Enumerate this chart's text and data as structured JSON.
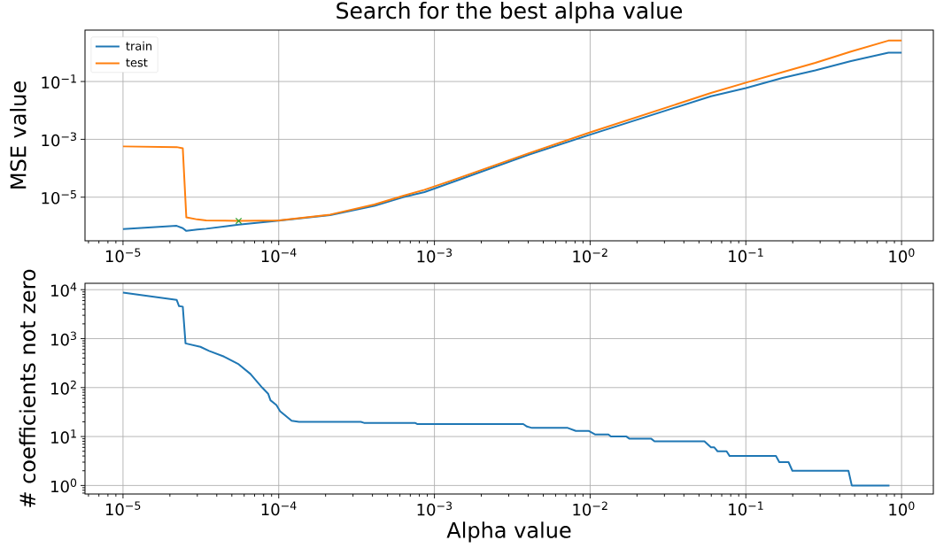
{
  "chart_data": [
    {
      "type": "line",
      "title": "Search for the best alpha value",
      "ylabel": "MSE value",
      "log": "xy",
      "grid": true,
      "legend": "top left",
      "xlim": [
        5.7e-06,
        1.6
      ],
      "ylim": [
        3.1e-07,
        6.0
      ],
      "xticks": [
        {
          "value": 1e-05,
          "label": "10$^{−5}$"
        },
        {
          "value": 0.0001,
          "label": "10$^{−4}$"
        },
        {
          "value": 0.001,
          "label": "10$^{−3}$"
        },
        {
          "value": 0.01,
          "label": "10$^{−2}$"
        },
        {
          "value": 0.1,
          "label": "10$^{−1}$"
        },
        {
          "value": 1,
          "label": "10$^{0}$"
        }
      ],
      "yticks": [
        {
          "value": 1e-05,
          "label": "10$^{−5}$"
        },
        {
          "value": 0.001,
          "label": "10$^{−3}$"
        },
        {
          "value": 0.1,
          "label": "10$^{−1}$"
        }
      ],
      "x": [
        1e-05,
        2.21e-05,
        2.42e-05,
        2.55e-05,
        3e-05,
        3.42e-05,
        5.53e-05,
        0.0001,
        0.000214,
        0.000411,
        0.000635,
        0.000863,
        0.00128,
        0.00403,
        0.01,
        0.0597,
        0.1,
        0.172,
        0.279,
        0.473,
        0.824,
        1.0
      ],
      "series": [
        {
          "name": "train",
          "color": "#1f77b4",
          "values": [
            7.9e-07,
            1.02e-06,
            8.5e-07,
            6.8e-07,
            7.6e-07,
            8.1e-07,
            1.12e-06,
            1.55e-06,
            2.4e-06,
            5e-06,
            1.01e-05,
            1.5e-05,
            3.2e-05,
            0.000295,
            0.00145,
            0.031,
            0.059,
            0.133,
            0.242,
            0.51,
            1.0,
            1.0
          ]
        },
        {
          "name": "test",
          "color": "#ff7f0e",
          "values": [
            0.00057,
            0.00054,
            0.00049,
            2e-06,
            1.7e-06,
            1.58e-06,
            1.51e-06,
            1.58e-06,
            2.5e-06,
            5.6e-06,
            1.13e-05,
            1.8e-05,
            3.7e-05,
            0.00033,
            0.00174,
            0.04,
            0.091,
            0.21,
            0.44,
            1.09,
            2.6,
            2.6
          ]
        },
        {
          "type": "scatter",
          "marker": "cross",
          "color": "#2ca02c",
          "x": [
            5.53e-05
          ],
          "values": [
            1.51e-06
          ]
        }
      ]
    },
    {
      "type": "line",
      "xlabel": "Alpha value",
      "ylabel": "# coefficients not zero",
      "log": "xy",
      "grid": true,
      "xlim": [
        5.7e-06,
        1.6
      ],
      "ylim": [
        0.67,
        13500
      ],
      "xticks": [
        {
          "value": 1e-05,
          "label": "10$^{−5}$"
        },
        {
          "value": 0.0001,
          "label": "10$^{−4}$"
        },
        {
          "value": 0.001,
          "label": "10$^{−3}$"
        },
        {
          "value": 0.01,
          "label": "10$^{−2}$"
        },
        {
          "value": 0.1,
          "label": "10$^{−1}$"
        },
        {
          "value": 1,
          "label": "10$^{0}$"
        }
      ],
      "yticks": [
        {
          "value": 1,
          "label": "10$^{0}$"
        },
        {
          "value": 10,
          "label": "10$^{1}$"
        },
        {
          "value": 100,
          "label": "10$^{2}$"
        },
        {
          "value": 1000,
          "label": "10$^{3}$"
        },
        {
          "value": 10000,
          "label": "10$^{4}$"
        }
      ],
      "x": [
        1e-05,
        2.21e-05,
        2.29e-05,
        2.42e-05,
        2.52e-05,
        3.14e-05,
        3.57e-05,
        4.45e-05,
        5.53e-05,
        6.58e-05,
        7.83e-05,
        8.55e-05,
        8.85e-05,
        9.66e-05,
        0.000102,
        0.000121,
        0.000135,
        0.000337,
        0.000353,
        0.00075,
        0.000774,
        0.00372,
        0.00393,
        0.00423,
        0.00718,
        0.00809,
        0.00982,
        0.0108,
        0.0131,
        0.0136,
        0.0171,
        0.0179,
        0.0247,
        0.0259,
        0.0542,
        0.0597,
        0.0627,
        0.0658,
        0.0752,
        0.0787,
        0.156,
        0.164,
        0.188,
        0.199,
        0.456,
        0.479,
        0.836
      ],
      "series": [
        {
          "color": "#1f77b4",
          "values": [
            8700,
            6200,
            4600,
            4500,
            800,
            680,
            560,
            430,
            300,
            190,
            100,
            75,
            55,
            44,
            33,
            21,
            20,
            20,
            19,
            19,
            18,
            18,
            16,
            15,
            15,
            13,
            13,
            11,
            11,
            10,
            10,
            9,
            9,
            8,
            8,
            6,
            6,
            5,
            5,
            4,
            4,
            3,
            3,
            2,
            2,
            1,
            1
          ]
        }
      ]
    }
  ]
}
